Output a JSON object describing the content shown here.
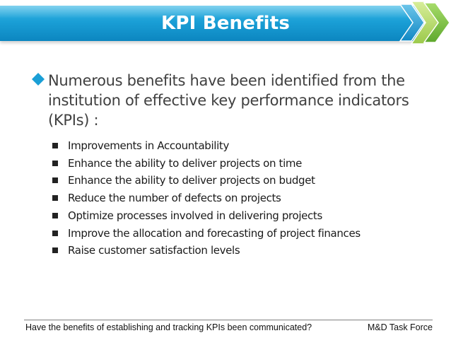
{
  "slide": {
    "title": "KPI Benefits",
    "main_bullet": "Numerous benefits have been identified from the institution of effective key performance indicators (KPIs) :",
    "main_bullet_icon": "diamond-bullet-icon",
    "sub_bullet_icon": "square-bullet-icon",
    "sub_bullets": [
      "Improvements in Accountability",
      "Enhance the ability to deliver projects on time",
      "Enhance the ability to deliver projects on budget",
      "Reduce the number of defects on projects",
      "Optimize processes involved in delivering projects",
      "Improve the allocation and forecasting of project finances",
      "Raise customer satisfaction levels"
    ]
  },
  "footer": {
    "left": "Have the benefits of establishing and tracking KPIs been communicated?",
    "right": "M&D Task Force"
  },
  "colors": {
    "title_bar": "#1a9fd6",
    "chevron_green": "#7ac143",
    "chevron_light_green": "#b5d96f",
    "main_bullet_marker": "#1a9fd6",
    "body_text": "#404040"
  }
}
